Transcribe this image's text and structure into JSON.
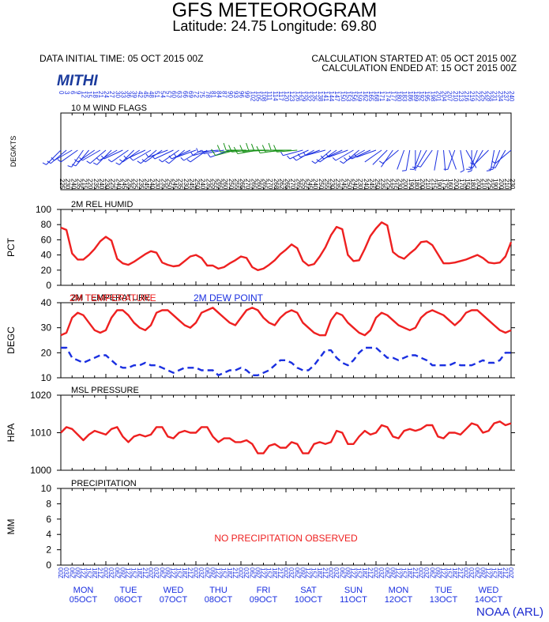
{
  "header": {
    "title": "GFS METEOROGRAM",
    "subtitle": "Latitude: 24.75 Longitude:  69.80",
    "initial_time": "DATA INITIAL TIME: 05 OCT 2015 00Z",
    "calc_started": "CALCULATION STARTED AT: 05 OCT 2015 00Z",
    "calc_ended": "CALCULATION ENDED AT: 15 OCT 2015 00Z",
    "logo_text": "MITHI",
    "footer": "NOAA (ARL)"
  },
  "colors": {
    "red": "#ee2020",
    "blue": "#1a2fe0",
    "green": "#159015",
    "axis": "#000000"
  },
  "days": [
    {
      "dow": "MON",
      "date": "05OCT"
    },
    {
      "dow": "TUE",
      "date": "06OCT"
    },
    {
      "dow": "WED",
      "date": "07OCT"
    },
    {
      "dow": "THU",
      "date": "08OCT"
    },
    {
      "dow": "FRI",
      "date": "09OCT"
    },
    {
      "dow": "SAT",
      "date": "10OCT"
    },
    {
      "dow": "SUN",
      "date": "11OCT"
    },
    {
      "dow": "MON",
      "date": "12OCT"
    },
    {
      "dow": "TUE",
      "date": "13OCT"
    },
    {
      "dow": "WED",
      "date": "14OCT"
    }
  ],
  "chart_data": [
    {
      "type": "wind_barbs",
      "panel_label": "10 M  WIND FLAGS",
      "ylabel": "DEG/KTS",
      "x_hours": [
        0,
        3,
        6,
        9,
        12,
        15,
        18,
        21,
        24,
        27,
        30,
        33,
        36,
        39,
        42,
        45,
        48,
        51,
        54,
        57,
        60,
        63,
        66,
        69,
        72,
        75,
        78,
        81,
        84,
        87,
        90,
        93,
        96,
        99,
        102,
        105,
        108,
        111,
        114,
        117,
        120,
        123,
        126,
        129,
        132,
        135,
        138,
        141,
        144,
        147,
        150,
        153,
        156,
        159,
        162,
        165,
        168,
        171,
        174,
        177,
        180,
        183,
        186,
        189,
        192,
        195,
        198,
        201,
        204,
        207,
        210,
        213,
        216,
        219,
        222,
        225,
        228,
        231,
        234,
        237,
        240
      ],
      "direction_deg": [
        225,
        230,
        240,
        235,
        215,
        220,
        235,
        240,
        230,
        225,
        240,
        245,
        235,
        225,
        235,
        245,
        240,
        230,
        235,
        250,
        245,
        235,
        230,
        245,
        250,
        240,
        235,
        255,
        265,
        260,
        250,
        255,
        265,
        270,
        265,
        260,
        265,
        270,
        268,
        262,
        265,
        270,
        265,
        255,
        245,
        240,
        250,
        255,
        230,
        235,
        245,
        250,
        240,
        230,
        240,
        245,
        250,
        235,
        225,
        215,
        230,
        200,
        190,
        180,
        200,
        210,
        215,
        190,
        175,
        160,
        200,
        170,
        150,
        180,
        200,
        210,
        225,
        190,
        200,
        210,
        230
      ],
      "speed_kts": [
        6,
        6,
        7,
        7,
        5,
        6,
        7,
        7,
        5,
        5,
        6,
        6,
        6,
        5,
        6,
        6,
        6,
        5,
        6,
        6,
        7,
        6,
        5,
        6,
        6,
        6,
        5,
        7,
        8,
        9,
        9,
        10,
        11,
        11,
        10,
        10,
        11,
        12,
        11,
        10,
        10,
        11,
        11,
        9,
        8,
        7,
        7,
        7,
        5,
        5,
        6,
        6,
        5,
        5,
        5,
        6,
        6,
        4,
        4,
        4,
        5,
        4,
        5,
        4,
        5,
        5,
        6,
        4,
        4,
        4,
        5,
        5,
        4,
        5,
        5,
        6,
        6,
        5,
        5,
        6,
        6
      ],
      "direction_ticks_top": [
        "0",
        "3",
        "6",
        "9",
        "12",
        "15",
        "18",
        "21",
        "24",
        "27",
        "30",
        "33",
        "36",
        "39",
        "42",
        "45",
        "48",
        "51",
        "54",
        "57",
        "60",
        "63",
        "66",
        "69",
        "72",
        "75",
        "78",
        "81",
        "84",
        "87",
        "90",
        "93",
        "96",
        "99",
        "102",
        "105",
        "108",
        "111",
        "114",
        "117",
        "120",
        "123",
        "126",
        "129",
        "132",
        "135",
        "138",
        "141",
        "144",
        "147",
        "150",
        "153",
        "156",
        "159",
        "162",
        "165",
        "168",
        "171",
        "174",
        "177",
        "180",
        "183",
        "186",
        "189",
        "192",
        "195",
        "198",
        "201",
        "204",
        "207",
        "210",
        "213",
        "216",
        "219",
        "222",
        "225",
        "228",
        "231",
        "234",
        "237",
        "240"
      ]
    },
    {
      "type": "line",
      "panel_label": "2M REL HUMID",
      "ylabel": "PCT",
      "ylim": [
        0,
        100
      ],
      "yticks": [
        0,
        20,
        40,
        60,
        80,
        100
      ],
      "series": [
        {
          "name": "2M REL HUMID",
          "x": [
            0,
            3,
            6,
            9,
            12,
            15,
            18,
            21,
            24,
            27,
            30,
            33,
            36,
            39,
            42,
            45,
            48,
            51,
            54,
            57,
            60,
            63,
            66,
            69,
            72,
            75,
            78,
            81,
            84,
            87,
            90,
            93,
            96,
            99,
            102,
            105,
            108,
            111,
            114,
            117,
            120,
            123,
            126,
            129,
            132,
            135,
            138,
            141,
            144,
            147,
            150,
            153,
            156,
            159,
            162,
            165,
            168,
            171,
            174,
            177,
            180,
            183,
            186,
            189,
            192,
            195,
            198,
            201,
            204,
            207,
            210,
            213,
            216,
            219,
            222,
            225,
            228,
            231,
            234,
            237,
            240
          ],
          "y": [
            76,
            73,
            42,
            34,
            34,
            40,
            48,
            58,
            64,
            59,
            35,
            29,
            27,
            31,
            36,
            41,
            45,
            43,
            30,
            27,
            25,
            26,
            32,
            38,
            40,
            36,
            26,
            26,
            22,
            24,
            29,
            33,
            38,
            36,
            24,
            20,
            22,
            27,
            33,
            41,
            47,
            54,
            49,
            32,
            26,
            28,
            38,
            50,
            66,
            77,
            74,
            40,
            32,
            33,
            48,
            65,
            75,
            83,
            79,
            44,
            38,
            35,
            42,
            48,
            57,
            58,
            53,
            41,
            29,
            29,
            30,
            32,
            34,
            37,
            40,
            36,
            30,
            29,
            30,
            38,
            57
          ]
        }
      ]
    },
    {
      "type": "line",
      "panel_label": "2M TEMPERATURE",
      "ylabel": "DEGC",
      "ylim": [
        10,
        40
      ],
      "yticks": [
        10,
        20,
        30,
        40
      ],
      "series": [
        {
          "name": "2M TEMPERATURE",
          "style": "solid",
          "x": [
            0,
            3,
            6,
            9,
            12,
            15,
            18,
            21,
            24,
            27,
            30,
            33,
            36,
            39,
            42,
            45,
            48,
            51,
            54,
            57,
            60,
            63,
            66,
            69,
            72,
            75,
            78,
            81,
            84,
            87,
            90,
            93,
            96,
            99,
            102,
            105,
            108,
            111,
            114,
            117,
            120,
            123,
            126,
            129,
            132,
            135,
            138,
            141,
            144,
            147,
            150,
            153,
            156,
            159,
            162,
            165,
            168,
            171,
            174,
            177,
            180,
            183,
            186,
            189,
            192,
            195,
            198,
            201,
            204,
            207,
            210,
            213,
            216,
            219,
            222,
            225,
            228,
            231,
            234,
            237,
            240
          ],
          "y": [
            27,
            28,
            34,
            36,
            35,
            32,
            29,
            28,
            29,
            34,
            37,
            37,
            35,
            32,
            30,
            29,
            31,
            36,
            37,
            37,
            35,
            33,
            31,
            30,
            32,
            36,
            37,
            38,
            36,
            34,
            32,
            31,
            34,
            37,
            38,
            37,
            34,
            32,
            31,
            34,
            36,
            37,
            36,
            32,
            30,
            28,
            27,
            27,
            33,
            36,
            35,
            32,
            30,
            28,
            27,
            29,
            34,
            36,
            35,
            33,
            31,
            30,
            29,
            30,
            34,
            36,
            37,
            36,
            35,
            33,
            31,
            33,
            36,
            37,
            37,
            35,
            33,
            31,
            29,
            28,
            29
          ]
        },
        {
          "name": "2M  DEW POINT",
          "style": "dashed",
          "x": [
            0,
            3,
            6,
            9,
            12,
            15,
            18,
            21,
            24,
            27,
            30,
            33,
            36,
            39,
            42,
            45,
            48,
            51,
            54,
            57,
            60,
            63,
            66,
            69,
            72,
            75,
            78,
            81,
            84,
            87,
            90,
            93,
            96,
            99,
            102,
            105,
            108,
            111,
            114,
            117,
            120,
            123,
            126,
            129,
            132,
            135,
            138,
            141,
            144,
            147,
            150,
            153,
            156,
            159,
            162,
            165,
            168,
            171,
            174,
            177,
            180,
            183,
            186,
            189,
            192,
            195,
            198,
            201,
            204,
            207,
            210,
            213,
            216,
            219,
            222,
            225,
            228,
            231,
            234,
            237,
            240
          ],
          "y": [
            22,
            22,
            18,
            17,
            16,
            17,
            18,
            19,
            19,
            17,
            15,
            14,
            14,
            15,
            15,
            16,
            15,
            15,
            14,
            13,
            12,
            13,
            14,
            14,
            14,
            13,
            13,
            13,
            11,
            12,
            13,
            13,
            14,
            13,
            11,
            11,
            12,
            13,
            15,
            17,
            17,
            16,
            14,
            13,
            13,
            15,
            18,
            21,
            21,
            18,
            16,
            15,
            17,
            20,
            22,
            22,
            22,
            20,
            18,
            18,
            17,
            18,
            19,
            19,
            18,
            17,
            15,
            15,
            15,
            15,
            16,
            15,
            15,
            15,
            16,
            17,
            16,
            16,
            17,
            20,
            20
          ]
        }
      ]
    },
    {
      "type": "line",
      "panel_label": "MSL PRESSURE",
      "ylabel": "HPA",
      "ylim": [
        1000,
        1020
      ],
      "yticks": [
        1000,
        1010,
        1020
      ],
      "series": [
        {
          "name": "MSL PRESSURE",
          "x": [
            0,
            3,
            6,
            9,
            12,
            15,
            18,
            21,
            24,
            27,
            30,
            33,
            36,
            39,
            42,
            45,
            48,
            51,
            54,
            57,
            60,
            63,
            66,
            69,
            72,
            75,
            78,
            81,
            84,
            87,
            90,
            93,
            96,
            99,
            102,
            105,
            108,
            111,
            114,
            117,
            120,
            123,
            126,
            129,
            132,
            135,
            138,
            141,
            144,
            147,
            150,
            153,
            156,
            159,
            162,
            165,
            168,
            171,
            174,
            177,
            180,
            183,
            186,
            189,
            192,
            195,
            198,
            201,
            204,
            207,
            210,
            213,
            216,
            219,
            222,
            225,
            228,
            231,
            234,
            237,
            240
          ],
          "y": [
            1010.0,
            1011.5,
            1011.0,
            1009.5,
            1008.0,
            1009.5,
            1010.5,
            1010.0,
            1009.5,
            1011.0,
            1011.5,
            1009.0,
            1007.5,
            1009.0,
            1009.5,
            1009.0,
            1009.5,
            1011.5,
            1011.5,
            1009.0,
            1008.5,
            1010.0,
            1010.5,
            1010.0,
            1010.0,
            1011.5,
            1011.5,
            1009.0,
            1007.5,
            1008.5,
            1008.5,
            1007.5,
            1007.5,
            1008.0,
            1007.0,
            1004.5,
            1004.5,
            1006.5,
            1007.0,
            1006.0,
            1006.0,
            1007.5,
            1007.0,
            1004.5,
            1004.5,
            1007.0,
            1007.5,
            1007.0,
            1007.5,
            1010.5,
            1010.0,
            1007.0,
            1007.0,
            1009.0,
            1010.5,
            1009.5,
            1010.0,
            1012.0,
            1011.5,
            1009.0,
            1008.5,
            1010.5,
            1011.0,
            1010.5,
            1011.0,
            1012.0,
            1012.0,
            1009.0,
            1008.5,
            1010.0,
            1010.0,
            1009.5,
            1011.0,
            1012.5,
            1012.0,
            1010.0,
            1010.5,
            1012.5,
            1013.0,
            1012.0,
            1012.5
          ]
        }
      ]
    },
    {
      "type": "bar",
      "panel_label": "PRECIPITATION",
      "ylabel": "MM",
      "ylim": [
        0,
        10
      ],
      "yticks": [
        0,
        2,
        4,
        6,
        8,
        10
      ],
      "annotation": "NO PRECIPITATION OBSERVED",
      "values": []
    }
  ],
  "x_axis": {
    "range_hours": [
      0,
      240
    ],
    "hour_labels": [
      "00Z",
      "03Z",
      "06Z",
      "09Z",
      "12Z",
      "15Z",
      "18Z",
      "21Z"
    ]
  }
}
